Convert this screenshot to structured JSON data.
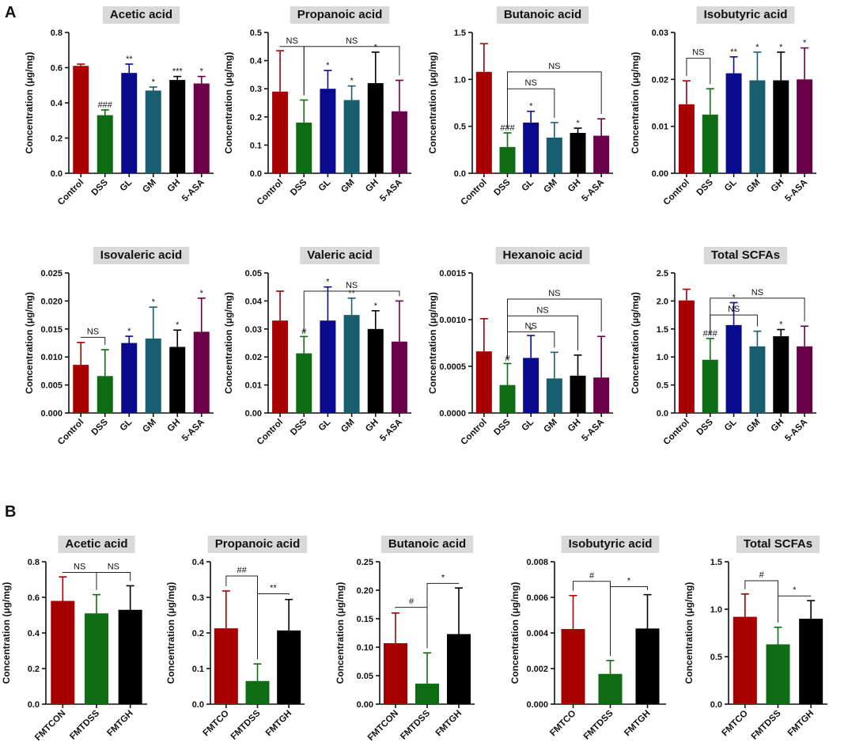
{
  "panel_labels": [
    "A",
    "B"
  ],
  "colors": {
    "Control": "#a80000",
    "DSS": "#0e6d12",
    "GL": "#0a0a8f",
    "GM": "#185e6e",
    "GH": "#000000",
    "5-ASA": "#6a0048",
    "FMTCON": "#a80000",
    "FMTCO": "#a80000",
    "FMTDSS": "#0e6d12",
    "FMTGH": "#000000"
  },
  "chart_data": [
    {
      "type": "bar",
      "panel": "A",
      "title": "Acetic acid",
      "ylabel": "Concentration (μg/mg)",
      "categories": [
        "Control",
        "DSS",
        "GL",
        "GM",
        "GH",
        "5-ASA"
      ],
      "values": [
        0.61,
        0.33,
        0.57,
        0.47,
        0.53,
        0.51
      ],
      "errors": [
        0.01,
        0.03,
        0.05,
        0.02,
        0.02,
        0.04
      ],
      "ylim": [
        0,
        0.8
      ],
      "yticks": [
        "0.0",
        "0.2",
        "0.4",
        "0.6",
        "0.8"
      ],
      "labels": [
        "",
        "###",
        "**",
        "*",
        "***",
        "*"
      ],
      "brackets": []
    },
    {
      "type": "bar",
      "panel": "A",
      "title": "Propanoic acid",
      "ylabel": "Concentration (μg/mg)",
      "categories": [
        "Control",
        "DSS",
        "GL",
        "GM",
        "GH",
        "5-ASA"
      ],
      "values": [
        0.29,
        0.18,
        0.3,
        0.26,
        0.32,
        0.22
      ],
      "errors": [
        0.145,
        0.08,
        0.065,
        0.05,
        0.11,
        0.11
      ],
      "ylim": [
        0,
        0.5
      ],
      "yticks": [
        "0.0",
        "0.1",
        "0.2",
        "0.3",
        "0.4",
        "0.5"
      ],
      "labels": [
        "",
        "",
        "*",
        "*",
        "*",
        ""
      ],
      "brackets": [
        {
          "from": 0,
          "to": 1,
          "y": 0.45,
          "label": "NS"
        },
        {
          "from": 1,
          "to": 5,
          "y": 0.45,
          "label": "NS"
        }
      ]
    },
    {
      "type": "bar",
      "panel": "A",
      "title": "Butanoic acid",
      "ylabel": "Concentration (μg/mg)",
      "categories": [
        "Control",
        "DSS",
        "GL",
        "GM",
        "GH",
        "5-ASA"
      ],
      "values": [
        1.08,
        0.28,
        0.54,
        0.38,
        0.43,
        0.4
      ],
      "errors": [
        0.3,
        0.15,
        0.12,
        0.16,
        0.05,
        0.18
      ],
      "ylim": [
        0,
        1.5
      ],
      "yticks": [
        "0.0",
        "0.5",
        "1.0",
        "1.5"
      ],
      "labels": [
        "",
        "###",
        "*",
        "",
        "*",
        ""
      ],
      "brackets": [
        {
          "from": 1,
          "to": 3,
          "y": 0.9,
          "label": "NS"
        },
        {
          "from": 1,
          "to": 5,
          "y": 1.08,
          "label": "NS"
        }
      ]
    },
    {
      "type": "bar",
      "panel": "A",
      "title": "Isobutyric acid",
      "ylabel": "Concentration (μg/mg)",
      "categories": [
        "Control",
        "DSS",
        "GL",
        "GM",
        "GH",
        "5-ASA"
      ],
      "values": [
        0.0147,
        0.0125,
        0.0213,
        0.0198,
        0.0198,
        0.02
      ],
      "errors": [
        0.005,
        0.0055,
        0.0035,
        0.006,
        0.006,
        0.0067
      ],
      "ylim": [
        0,
        0.03
      ],
      "yticks": [
        "0.00",
        "0.01",
        "0.02",
        "0.03"
      ],
      "labels": [
        "",
        "",
        "**",
        "*",
        "*",
        "*"
      ],
      "brackets": [
        {
          "from": 0,
          "to": 1,
          "y": 0.0245,
          "label": "NS"
        }
      ]
    },
    {
      "type": "bar",
      "panel": "A",
      "title": "Isovaleric acid",
      "ylabel": "Concentration (μg/mg)",
      "categories": [
        "Control",
        "DSS",
        "GL",
        "GM",
        "GH",
        "5-ASA"
      ],
      "values": [
        0.0086,
        0.0066,
        0.0125,
        0.0133,
        0.0118,
        0.0145
      ],
      "errors": [
        0.004,
        0.0047,
        0.0012,
        0.0056,
        0.003,
        0.006
      ],
      "ylim": [
        0,
        0.025
      ],
      "yticks": [
        "0.000",
        "0.005",
        "0.010",
        "0.015",
        "0.020",
        "0.025"
      ],
      "labels": [
        "",
        "",
        "*",
        "*",
        "*",
        "*"
      ],
      "brackets": [
        {
          "from": 0,
          "to": 1,
          "y": 0.0135,
          "label": "NS"
        }
      ]
    },
    {
      "type": "bar",
      "panel": "A",
      "title": "Valeric acid",
      "ylabel": "Concentration (μg/mg)",
      "categories": [
        "Control",
        "DSS",
        "GL",
        "GM",
        "GH",
        "5-ASA"
      ],
      "values": [
        0.033,
        0.0213,
        0.033,
        0.035,
        0.03,
        0.0255
      ],
      "errors": [
        0.0105,
        0.006,
        0.012,
        0.006,
        0.0065,
        0.0145
      ],
      "ylim": [
        0,
        0.05
      ],
      "yticks": [
        "0.00",
        "0.01",
        "0.02",
        "0.03",
        "0.04",
        "0.05"
      ],
      "labels": [
        "",
        "#",
        "*",
        "**",
        "*",
        ""
      ],
      "brackets": [
        {
          "from": 1,
          "to": 5,
          "y": 0.0435,
          "label": "NS"
        }
      ]
    },
    {
      "type": "bar",
      "panel": "A",
      "title": "Hexanoic acid",
      "ylabel": "Concentration (μg/mg)",
      "categories": [
        "Control",
        "DSS",
        "GL",
        "GM",
        "GH",
        "5-ASA"
      ],
      "values": [
        0.00066,
        0.0003,
        0.00059,
        0.00037,
        0.0004,
        0.00038
      ],
      "errors": [
        0.00035,
        0.00023,
        0.00024,
        0.00028,
        0.00022,
        0.00044
      ],
      "ylim": [
        0,
        0.0015
      ],
      "yticks": [
        "0.0000",
        "0.0005",
        "0.0010",
        "0.0015"
      ],
      "labels": [
        "",
        "#",
        "*",
        "",
        "",
        ""
      ],
      "brackets": [
        {
          "from": 1,
          "to": 3,
          "y": 0.00087,
          "label": "NS"
        },
        {
          "from": 1,
          "to": 4,
          "y": 0.00104,
          "label": "NS"
        },
        {
          "from": 1,
          "to": 5,
          "y": 0.00122,
          "label": "NS"
        }
      ]
    },
    {
      "type": "bar",
      "panel": "A",
      "title": "Total SCFAs",
      "ylabel": "Concentration (μg/mg)",
      "categories": [
        "Control",
        "DSS",
        "GL",
        "GM",
        "GH",
        "5-ASA"
      ],
      "values": [
        2.01,
        0.95,
        1.57,
        1.19,
        1.37,
        1.19
      ],
      "errors": [
        0.2,
        0.38,
        0.4,
        0.27,
        0.12,
        0.36
      ],
      "ylim": [
        0,
        2.5
      ],
      "yticks": [
        "0.0",
        "0.5",
        "1.0",
        "1.5",
        "2.0",
        "2.5"
      ],
      "labels": [
        "",
        "###",
        "*",
        "",
        "*",
        ""
      ],
      "brackets": [
        {
          "from": 1,
          "to": 3,
          "y": 1.75,
          "label": "NS"
        },
        {
          "from": 1,
          "to": 5,
          "y": 2.05,
          "label": "NS"
        }
      ]
    },
    {
      "type": "bar",
      "panel": "B",
      "title": "Acetic acid",
      "ylabel": "Concentration (μg/mg)",
      "categories": [
        "FMTCON",
        "FMTDSS",
        "FMTGH"
      ],
      "values": [
        0.58,
        0.51,
        0.53
      ],
      "errors": [
        0.135,
        0.105,
        0.135
      ],
      "ylim": [
        0,
        0.8
      ],
      "yticks": [
        "0.0",
        "0.2",
        "0.4",
        "0.6",
        "0.8"
      ],
      "labels": [
        "",
        "",
        ""
      ],
      "brackets": [
        {
          "from": 0,
          "to": 1,
          "y": 0.74,
          "label": "NS"
        },
        {
          "from": 1,
          "to": 2,
          "y": 0.74,
          "label": "NS"
        }
      ]
    },
    {
      "type": "bar",
      "panel": "B",
      "title": "Propanoic acid",
      "ylabel": "Concentration (μg/mg)",
      "categories": [
        "FMTCO",
        "FMTDSS",
        "FMTGH"
      ],
      "values": [
        0.213,
        0.065,
        0.207
      ],
      "errors": [
        0.105,
        0.048,
        0.087
      ],
      "ylim": [
        0,
        0.4
      ],
      "yticks": [
        "0.0",
        "0.1",
        "0.2",
        "0.3",
        "0.4"
      ],
      "labels": [
        "",
        "",
        ""
      ],
      "brackets": [
        {
          "from": 0,
          "to": 1,
          "y": 0.36,
          "label": "##"
        },
        {
          "from": 1,
          "to": 2,
          "y": 0.31,
          "label": "**"
        }
      ]
    },
    {
      "type": "bar",
      "panel": "B",
      "title": "Butanoic acid",
      "ylabel": "Concentration (μg/mg)",
      "categories": [
        "FMTCON",
        "FMTDSS",
        "FMTGH"
      ],
      "values": [
        0.107,
        0.036,
        0.123
      ],
      "errors": [
        0.053,
        0.054,
        0.081
      ],
      "ylim": [
        0,
        0.25
      ],
      "yticks": [
        "0.00",
        "0.05",
        "0.10",
        "0.15",
        "0.20",
        "0.25"
      ],
      "labels": [
        "",
        "",
        ""
      ],
      "brackets": [
        {
          "from": 0,
          "to": 1,
          "y": 0.17,
          "label": "#"
        },
        {
          "from": 1,
          "to": 2,
          "y": 0.212,
          "label": "*"
        }
      ]
    },
    {
      "type": "bar",
      "panel": "B",
      "title": "Isobutyric acid",
      "ylabel": "Concentration (μg/mg)",
      "categories": [
        "FMTCO",
        "FMTDSS",
        "FMTGH"
      ],
      "values": [
        0.00422,
        0.0017,
        0.00425
      ],
      "errors": [
        0.00188,
        0.00075,
        0.0019
      ],
      "ylim": [
        0,
        0.008
      ],
      "yticks": [
        "0.000",
        "0.002",
        "0.004",
        "0.006",
        "0.008"
      ],
      "labels": [
        "",
        "",
        ""
      ],
      "brackets": [
        {
          "from": 0,
          "to": 1,
          "y": 0.0069,
          "label": "#"
        },
        {
          "from": 1,
          "to": 2,
          "y": 0.0066,
          "label": "*"
        }
      ]
    },
    {
      "type": "bar",
      "panel": "B",
      "title": "Total  SCFAs",
      "ylabel": "Concentration (μg/mg)",
      "categories": [
        "FMTCO",
        "FMTDSS",
        "FMTGH"
      ],
      "values": [
        0.92,
        0.63,
        0.9
      ],
      "errors": [
        0.24,
        0.18,
        0.19
      ],
      "ylim": [
        0,
        1.5
      ],
      "yticks": [
        "0.0",
        "0.5",
        "1.0",
        "1.5"
      ],
      "labels": [
        "",
        "",
        ""
      ],
      "brackets": [
        {
          "from": 0,
          "to": 1,
          "y": 1.3,
          "label": "#"
        },
        {
          "from": 1,
          "to": 2,
          "y": 1.14,
          "label": "*"
        }
      ]
    }
  ]
}
